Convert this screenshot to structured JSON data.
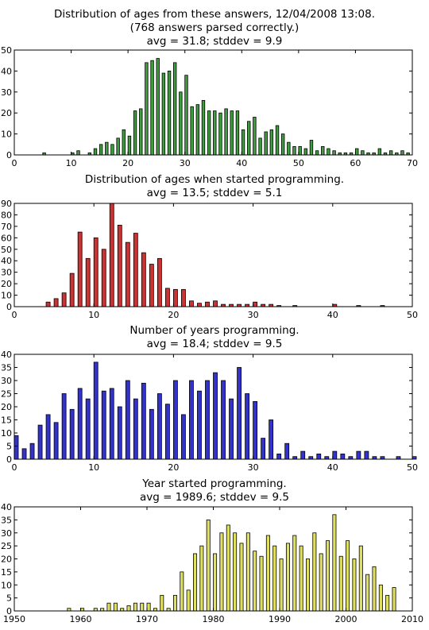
{
  "chart_data": [
    {
      "type": "bar",
      "title": "Distribution of ages from these answers, 12/04/2008 13:08.",
      "subtitle": "(768 answers parsed correctly.)",
      "stats": "avg = 31.8; stddev = 9.9",
      "color": "#3f9f3f",
      "xlim": [
        0,
        70
      ],
      "ylim": [
        0,
        50
      ],
      "xticks": [
        0,
        10,
        20,
        30,
        40,
        50,
        60,
        70
      ],
      "yticks": [
        0,
        10,
        20,
        30,
        40,
        50
      ],
      "bar_width": 0.5,
      "x": [
        5,
        10,
        11,
        13,
        14,
        15,
        16,
        17,
        18,
        19,
        20,
        21,
        22,
        23,
        24,
        25,
        26,
        27,
        28,
        29,
        30,
        31,
        32,
        33,
        34,
        35,
        36,
        37,
        38,
        39,
        40,
        41,
        42,
        43,
        44,
        45,
        46,
        47,
        48,
        49,
        50,
        51,
        52,
        53,
        54,
        55,
        56,
        57,
        58,
        59,
        60,
        61,
        62,
        63,
        64,
        65,
        66,
        67,
        68,
        69
      ],
      "values": [
        1,
        1,
        2,
        1,
        3,
        5,
        6,
        5,
        8,
        12,
        9,
        21,
        22,
        44,
        45,
        46,
        39,
        40,
        44,
        30,
        38,
        23,
        24,
        26,
        21,
        21,
        20,
        22,
        21,
        21,
        12,
        16,
        18,
        8,
        11,
        12,
        14,
        10,
        6,
        4,
        4,
        3,
        7,
        2,
        4,
        3,
        2,
        1,
        1,
        1,
        3,
        2,
        1,
        1,
        3,
        1,
        2,
        1,
        2,
        1
      ]
    },
    {
      "type": "bar",
      "title": "Distribution of ages when started programming.",
      "stats": "avg = 13.5; stddev = 5.1",
      "color": "#cc3333",
      "xlim": [
        0,
        50
      ],
      "ylim": [
        0,
        90
      ],
      "xticks": [
        0,
        10,
        20,
        30,
        40,
        50
      ],
      "yticks": [
        0,
        10,
        20,
        30,
        40,
        50,
        60,
        70,
        80,
        90
      ],
      "bar_width": 0.5,
      "x": [
        4,
        5,
        6,
        7,
        8,
        9,
        10,
        11,
        12,
        13,
        14,
        15,
        16,
        17,
        18,
        19,
        20,
        21,
        22,
        23,
        24,
        25,
        26,
        27,
        28,
        29,
        30,
        31,
        32,
        33,
        35,
        40,
        43,
        46
      ],
      "values": [
        4,
        7,
        12,
        29,
        65,
        42,
        60,
        50,
        90,
        71,
        56,
        64,
        47,
        37,
        42,
        16,
        15,
        15,
        5,
        3,
        4,
        5,
        2,
        2,
        2,
        2,
        4,
        2,
        2,
        1,
        1,
        2,
        1,
        1
      ]
    },
    {
      "type": "bar",
      "title": "Number of years programming.",
      "stats": "avg = 18.4; stddev = 9.5",
      "color": "#3333cc",
      "xlim": [
        0,
        50
      ],
      "ylim": [
        0,
        40
      ],
      "xticks": [
        0,
        10,
        20,
        30,
        40,
        50
      ],
      "yticks": [
        0,
        5,
        10,
        15,
        20,
        25,
        30,
        35,
        40
      ],
      "bar_width": 0.5,
      "x": [
        0,
        1,
        2,
        3,
        4,
        5,
        6,
        7,
        8,
        9,
        10,
        11,
        12,
        13,
        14,
        15,
        16,
        17,
        18,
        19,
        20,
        21,
        22,
        23,
        24,
        25,
        26,
        27,
        28,
        29,
        30,
        31,
        32,
        33,
        34,
        35,
        36,
        37,
        38,
        39,
        40,
        41,
        42,
        43,
        44,
        45,
        46,
        48,
        50
      ],
      "values": [
        9,
        4,
        6,
        13,
        17,
        14,
        25,
        19,
        27,
        23,
        37,
        26,
        27,
        20,
        30,
        23,
        29,
        19,
        25,
        21,
        30,
        17,
        30,
        26,
        30,
        33,
        30,
        23,
        35,
        25,
        22,
        8,
        15,
        2,
        6,
        1,
        3,
        1,
        2,
        1,
        3,
        2,
        1,
        3,
        3,
        1,
        1,
        1,
        1
      ]
    },
    {
      "type": "bar",
      "title": "Year started programming.",
      "stats": "avg = 1989.6; stddev = 9.5",
      "color": "#e0e060",
      "xlim": [
        1950,
        2010
      ],
      "ylim": [
        0,
        40
      ],
      "xticks": [
        1950,
        1960,
        1970,
        1980,
        1990,
        2000,
        2010
      ],
      "yticks": [
        0,
        5,
        10,
        15,
        20,
        25,
        30,
        35,
        40
      ],
      "bar_width": 0.5,
      "x": [
        1958,
        1960,
        1962,
        1963,
        1964,
        1965,
        1966,
        1967,
        1968,
        1969,
        1970,
        1971,
        1972,
        1973,
        1974,
        1975,
        1976,
        1977,
        1978,
        1979,
        1980,
        1981,
        1982,
        1983,
        1984,
        1985,
        1986,
        1987,
        1988,
        1989,
        1990,
        1991,
        1992,
        1993,
        1994,
        1995,
        1996,
        1997,
        1998,
        1999,
        2000,
        2001,
        2002,
        2003,
        2004,
        2005,
        2006,
        2007
      ],
      "values": [
        1,
        1,
        1,
        1,
        3,
        3,
        1,
        2,
        3,
        3,
        3,
        1,
        6,
        1,
        6,
        15,
        8,
        22,
        25,
        35,
        22,
        30,
        33,
        30,
        26,
        30,
        23,
        21,
        29,
        25,
        20,
        26,
        29,
        25,
        20,
        30,
        22,
        27,
        37,
        21,
        27,
        20,
        25,
        14,
        17,
        10,
        6,
        9
      ]
    }
  ]
}
